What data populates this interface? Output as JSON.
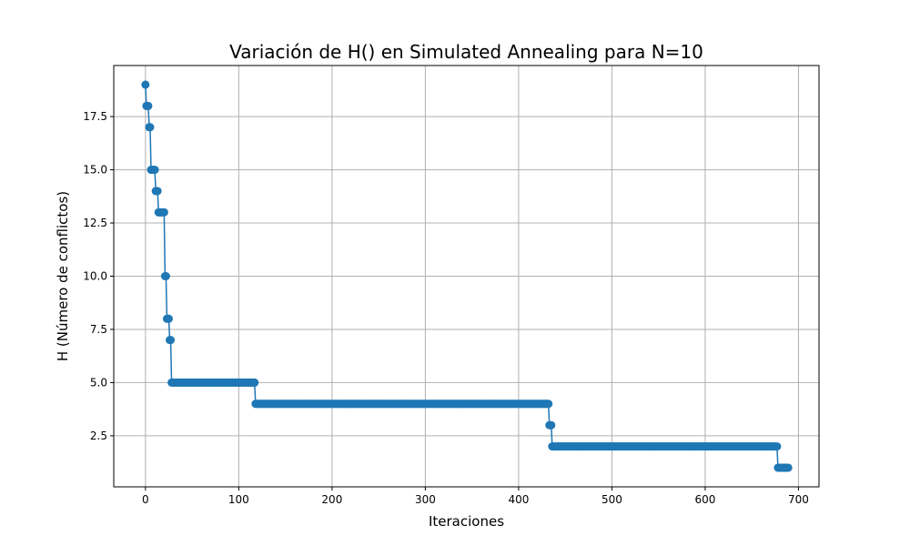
{
  "chart_data": {
    "type": "line",
    "title": "Variación de H() en Simulated Annealing para N=10",
    "xlabel": "Iteraciones",
    "ylabel": "H (Número de conflictos)",
    "xlim": [
      -34,
      722
    ],
    "ylim": [
      0.1,
      19.9
    ],
    "xticks": [
      0,
      100,
      200,
      300,
      400,
      500,
      600,
      700
    ],
    "xtick_labels": [
      "0",
      "100",
      "200",
      "300",
      "400",
      "500",
      "600",
      "700"
    ],
    "yticks": [
      2.5,
      5.0,
      7.5,
      10.0,
      12.5,
      15.0,
      17.5
    ],
    "ytick_labels": [
      "2.5",
      "5.0",
      "7.5",
      "10.0",
      "12.5",
      "15.0",
      "17.5"
    ],
    "grid": true,
    "line_color": "#1f77b4",
    "marker": "circle",
    "series": [
      {
        "segments": [
          {
            "start": 0,
            "end": 0,
            "value": 19
          },
          {
            "start": 1,
            "end": 3,
            "value": 18
          },
          {
            "start": 4,
            "end": 5,
            "value": 17
          },
          {
            "start": 6,
            "end": 10,
            "value": 15
          },
          {
            "start": 11,
            "end": 13,
            "value": 14
          },
          {
            "start": 14,
            "end": 20,
            "value": 13
          },
          {
            "start": 21,
            "end": 22,
            "value": 10
          },
          {
            "start": 23,
            "end": 25,
            "value": 8
          },
          {
            "start": 26,
            "end": 27,
            "value": 7
          },
          {
            "start": 28,
            "end": 117,
            "value": 5
          },
          {
            "start": 118,
            "end": 432,
            "value": 4
          },
          {
            "start": 433,
            "end": 435,
            "value": 3
          },
          {
            "start": 436,
            "end": 677,
            "value": 2
          },
          {
            "start": 678,
            "end": 689,
            "value": 1
          }
        ]
      }
    ]
  }
}
